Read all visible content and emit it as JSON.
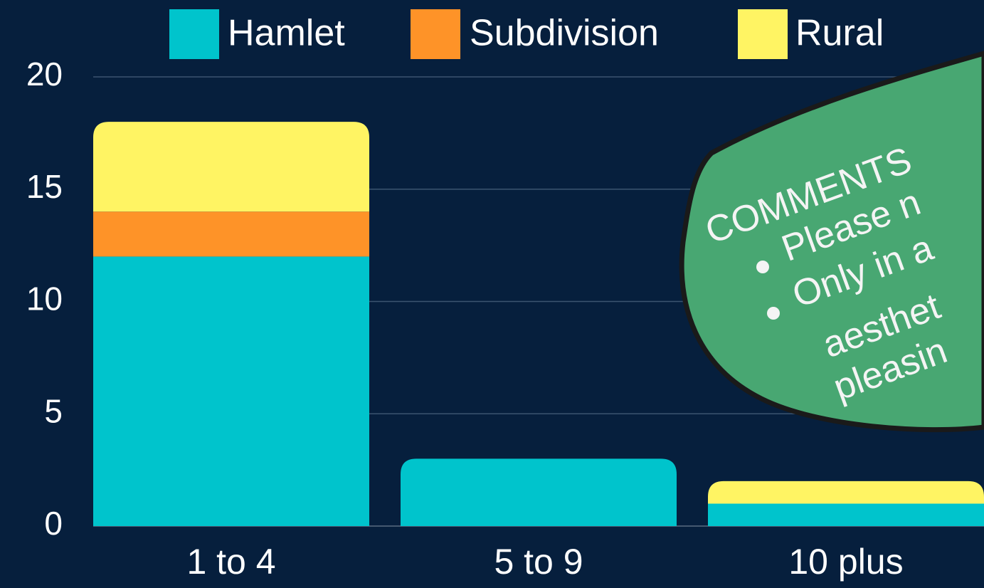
{
  "chart_data": {
    "type": "stacked_bar",
    "categories": [
      "1 to 4",
      "5 to 9",
      "10 plus"
    ],
    "series": [
      {
        "name": "Hamlet",
        "color": "#00c4cc",
        "values": [
          12,
          3,
          1
        ]
      },
      {
        "name": "Subdivision",
        "color": "#fe9328",
        "values": [
          2,
          0,
          0
        ]
      },
      {
        "name": "Rural",
        "color": "#fff463",
        "values": [
          4,
          0,
          1
        ]
      }
    ],
    "ylim": [
      0,
      20
    ],
    "yticks": [
      0,
      5,
      10,
      15,
      20
    ],
    "grid": true,
    "legend": "top",
    "annotation": {
      "lines": [
        "COMMENTS",
        "Please n",
        "Only in a",
        "aesthet",
        "pleasin"
      ]
    }
  }
}
